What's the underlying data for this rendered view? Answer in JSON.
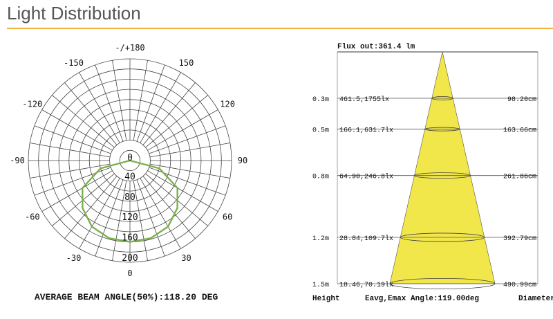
{
  "header": {
    "title": "Light Distribution",
    "accent_color": "#f0b13c"
  },
  "polar": {
    "angle_labels": [
      "-/+180",
      "-150",
      "150",
      "-120",
      "120",
      "-90",
      "90",
      "-60",
      "60",
      "-30",
      "30",
      "0"
    ],
    "radial_labels": [
      "0",
      "40",
      "80",
      "120",
      "160",
      "200"
    ],
    "curve_color": "#7bb04a",
    "beam_caption": "AVERAGE BEAM ANGLE(50%):118.20 DEG"
  },
  "chart_data": [
    {
      "type": "polar",
      "angle_ticks": [
        -180,
        -150,
        -120,
        -90,
        -60,
        -30,
        0,
        30,
        60,
        90,
        120,
        150,
        180
      ],
      "radial_range": [
        0,
        200
      ],
      "radial_ticks": [
        0,
        40,
        80,
        120,
        160,
        200
      ],
      "series": [
        {
          "angles_deg": [
            0,
            15,
            30,
            45,
            60,
            75,
            90
          ],
          "values": [
            160,
            158,
            150,
            132,
            108,
            60,
            0
          ]
        }
      ],
      "caption": "AVERAGE BEAM ANGLE(50%):118.20 DEG"
    },
    {
      "type": "table",
      "header": "Flux out:361.4 lm",
      "columns": [
        "Height",
        "Eavg,Emax Angle:119.00deg",
        "Diameter"
      ],
      "rows": [
        {
          "height": "0.3m",
          "values": "461.5,1755lx",
          "diameter": "98.20cm"
        },
        {
          "height": "0.5m",
          "values": "166.1,631.7lx",
          "diameter": "163.66cm"
        },
        {
          "height": "0.8m",
          "values": "64.90,246.8lx",
          "diameter": "261.86cm"
        },
        {
          "height": "1.2m",
          "values": "28.84,109.7lx",
          "diameter": "392.79cm"
        },
        {
          "height": "1.5m",
          "values": "18.46,70.19lx",
          "diameter": "490.99cm"
        }
      ],
      "heights_m": [
        0.3,
        0.5,
        0.8,
        1.2,
        1.5
      ],
      "diameters_cm": [
        98.2,
        163.66,
        261.86,
        392.79,
        490.99
      ],
      "cone_color": "#f1e64a"
    }
  ]
}
